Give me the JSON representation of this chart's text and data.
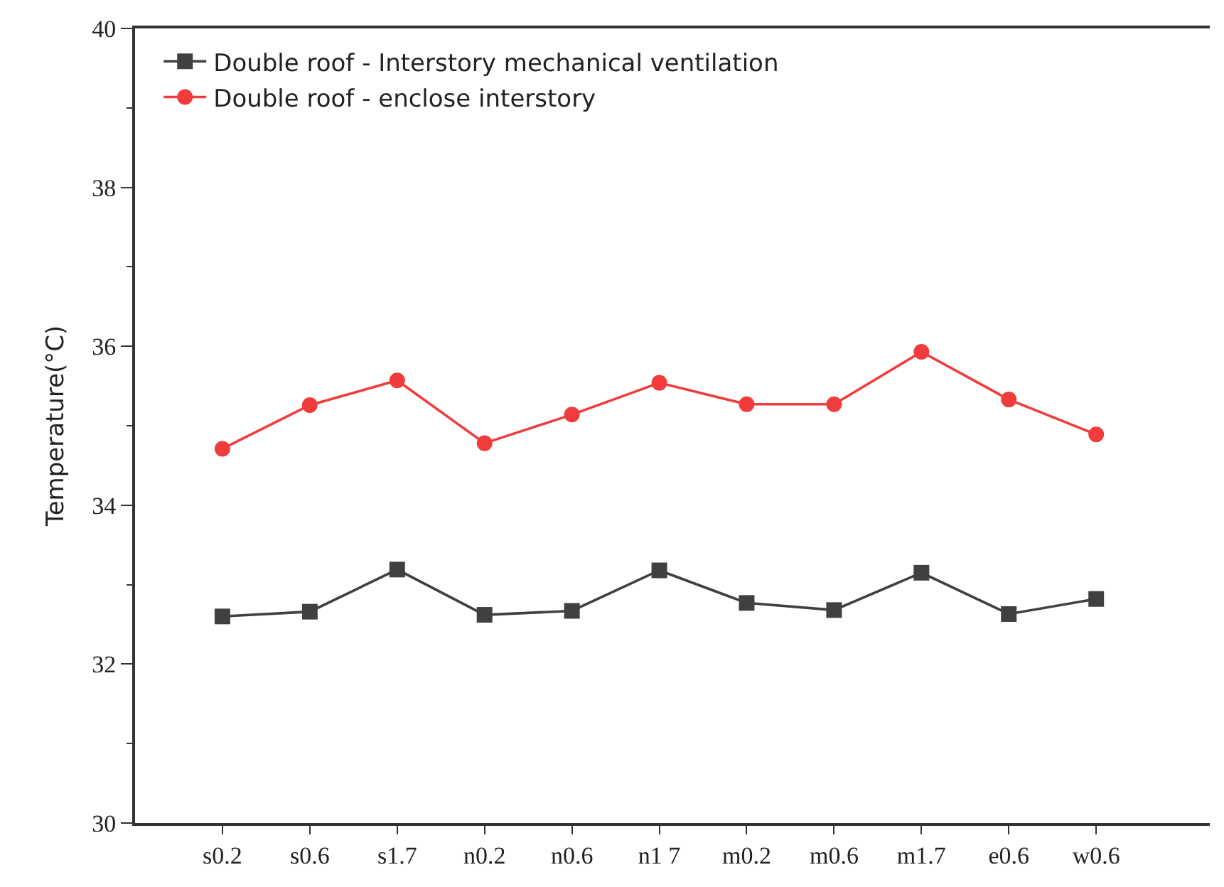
{
  "chart_data": {
    "type": "line",
    "ylabel": "Temperature(°C)",
    "categories": [
      "s0.2",
      "s0.6",
      "s1.7",
      "n0.2",
      "n0.6",
      "n1 7",
      "m0.2",
      "m0.6",
      "m1.7",
      "e0.6",
      "w0.6"
    ],
    "series": [
      {
        "name": "Double roof - Interstory mechanical ventilation",
        "color": "#404040",
        "marker": "square",
        "values": [
          32.6,
          32.66,
          33.19,
          32.62,
          32.67,
          33.18,
          32.77,
          32.68,
          33.15,
          32.63,
          32.82
        ]
      },
      {
        "name": "Double roof - enclose interstory",
        "color": "#f03c3c",
        "marker": "circle",
        "values": [
          34.71,
          35.26,
          35.57,
          34.78,
          35.14,
          35.54,
          35.27,
          35.27,
          35.93,
          35.33,
          34.89
        ]
      }
    ],
    "ylim": [
      30,
      40
    ],
    "yticks": [
      30,
      32,
      34,
      36,
      38,
      40
    ],
    "legend": "top left",
    "line_style": "solid"
  }
}
